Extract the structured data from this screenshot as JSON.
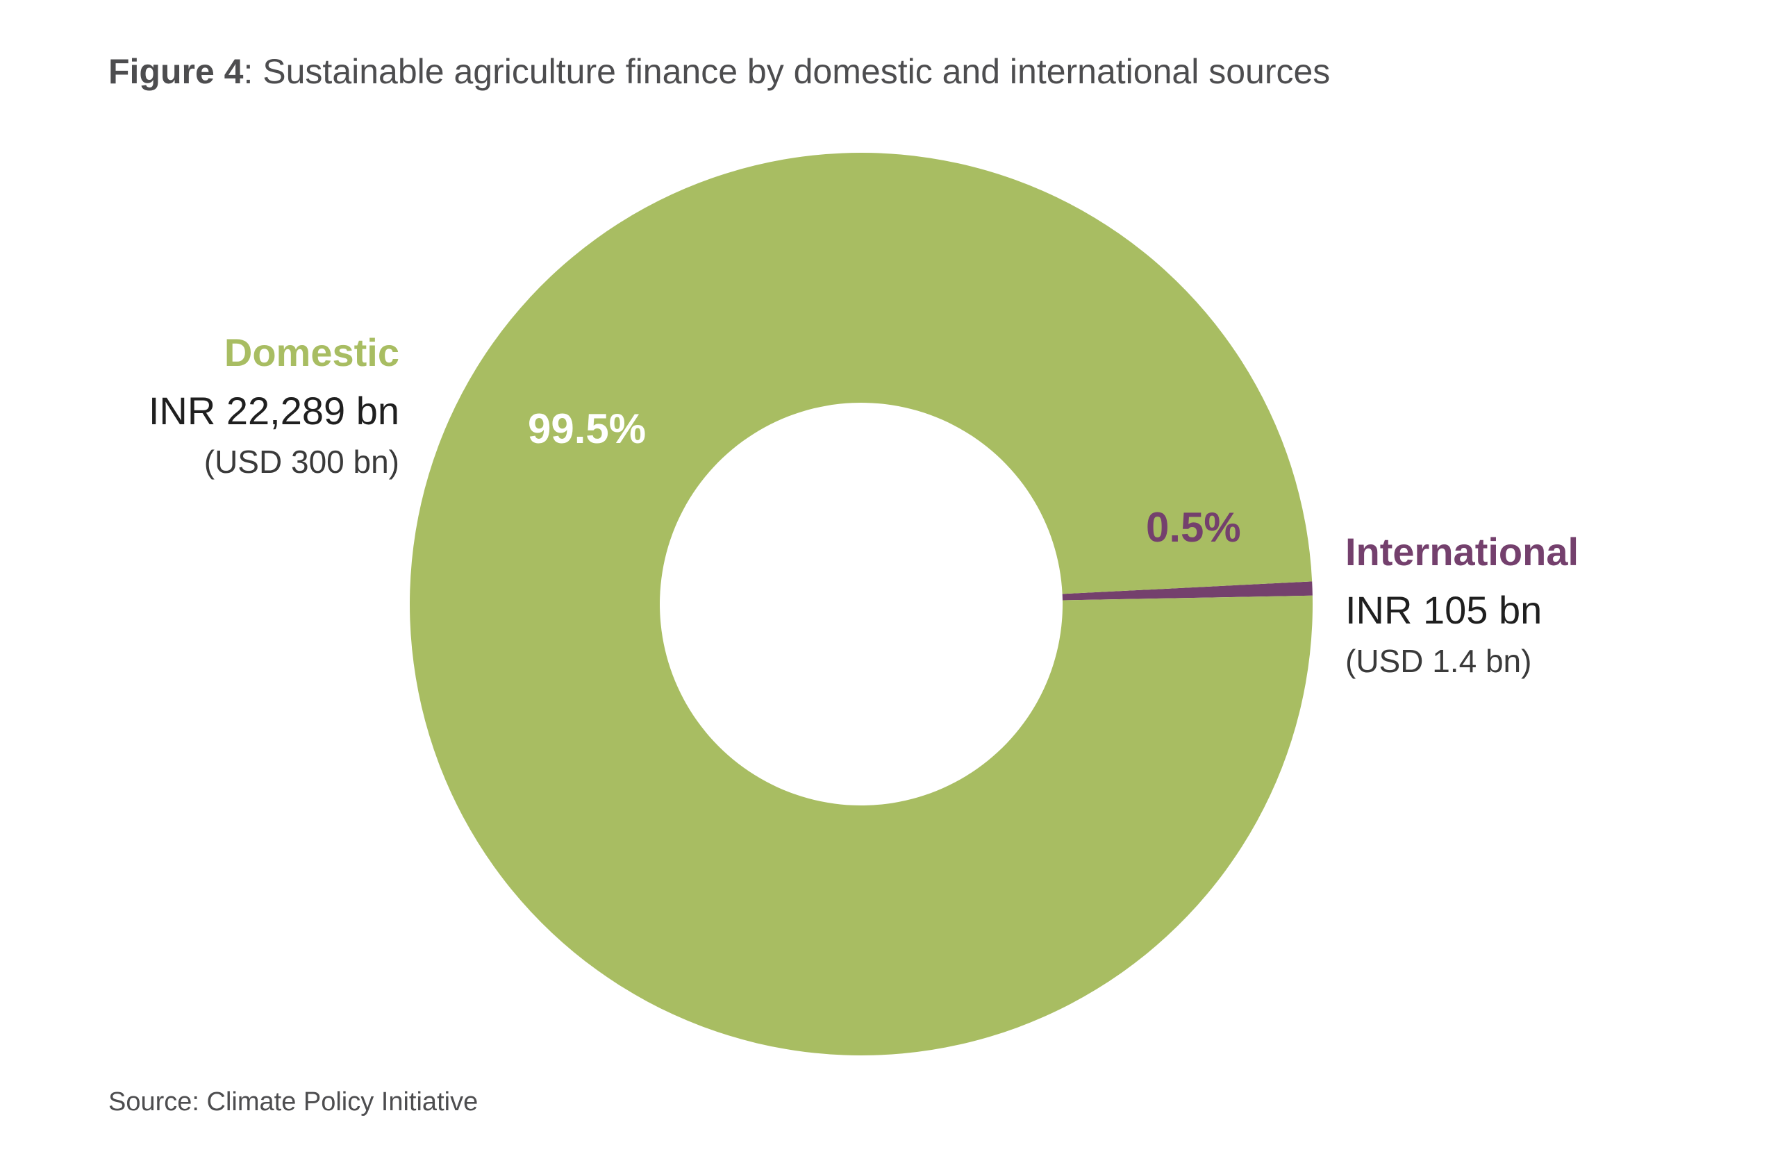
{
  "title": {
    "bold": "Figure 4",
    "rest": ": Sustainable agriculture finance by domestic and international sources"
  },
  "source": "Source: Climate Policy Initiative",
  "colors": {
    "domestic": "#a8bd62",
    "international": "#74406d",
    "text": "#4d4d4f"
  },
  "chart_data": {
    "type": "pie",
    "variant": "donut",
    "title": "Figure 4: Sustainable agriculture finance by domestic and international sources",
    "slices": [
      {
        "name": "Domestic",
        "value": 99.5,
        "pct_label": "99.5%",
        "inr_label": "INR 22,289 bn",
        "usd_label": "(USD 300 bn)",
        "color": "#a8bd62"
      },
      {
        "name": "International",
        "value": 0.5,
        "pct_label": "0.5%",
        "inr_label": "INR 105 bn",
        "usd_label": "(USD 1.4 bn)",
        "color": "#74406d"
      }
    ]
  }
}
